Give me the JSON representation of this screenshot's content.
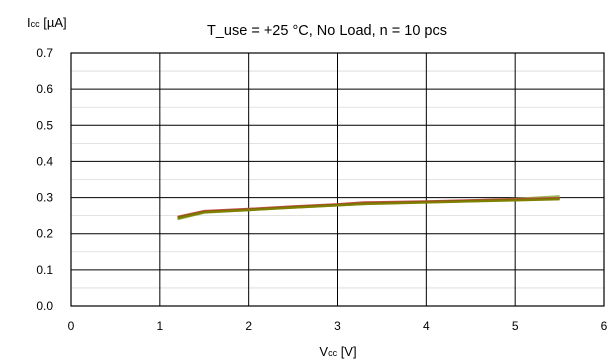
{
  "chart_data": {
    "type": "line",
    "title": "T_use = +25 °C, No Load, n = 10 pcs",
    "ylabel_main": "I",
    "ylabel_sub": "cc",
    "ylabel_unit": " [µA]",
    "xlabel_main": "V",
    "xlabel_sub": "cc",
    "xlabel_unit": " [V]",
    "xlim": [
      0,
      6
    ],
    "ylim": [
      0,
      0.7
    ],
    "x_ticks": [
      "0",
      "1",
      "2",
      "3",
      "4",
      "5",
      "6"
    ],
    "y_ticks": [
      "0.0",
      "0.1",
      "0.2",
      "0.3",
      "0.4",
      "0.5",
      "0.6",
      "0.7"
    ],
    "grid": true,
    "series": [
      {
        "color": "#9bbb59",
        "x": [
          1.2,
          1.5,
          2.0,
          2.5,
          3.0,
          3.3,
          4.0,
          4.5,
          5.0,
          5.5
        ],
        "y": [
          0.24,
          0.258,
          0.265,
          0.272,
          0.278,
          0.282,
          0.287,
          0.292,
          0.297,
          0.304
        ]
      },
      {
        "color": "#8064a2",
        "x": [
          1.2,
          1.5,
          2.0,
          2.5,
          3.0,
          3.3,
          4.0,
          4.5,
          5.0,
          5.5
        ],
        "y": [
          0.243,
          0.26,
          0.266,
          0.273,
          0.279,
          0.283,
          0.287,
          0.29,
          0.293,
          0.297
        ]
      },
      {
        "color": "#4bacc6",
        "x": [
          1.2,
          1.5,
          2.0,
          2.5,
          3.0,
          3.3,
          4.0,
          4.5,
          5.0,
          5.5
        ],
        "y": [
          0.244,
          0.26,
          0.266,
          0.273,
          0.279,
          0.283,
          0.287,
          0.29,
          0.293,
          0.296
        ]
      },
      {
        "color": "#f79646",
        "x": [
          1.2,
          1.5,
          2.0,
          2.5,
          3.0,
          3.3,
          4.0,
          4.5,
          5.0,
          5.5
        ],
        "y": [
          0.246,
          0.262,
          0.268,
          0.275,
          0.281,
          0.285,
          0.289,
          0.292,
          0.295,
          0.298
        ]
      },
      {
        "color": "#c0504d",
        "x": [
          1.2,
          1.5,
          2.0,
          2.5,
          3.0,
          3.3,
          4.0,
          4.5,
          5.0,
          5.5
        ],
        "y": [
          0.247,
          0.263,
          0.269,
          0.276,
          0.282,
          0.287,
          0.29,
          0.293,
          0.296,
          0.299
        ]
      },
      {
        "color": "#7f6000",
        "x": [
          1.2,
          1.5,
          2.0,
          2.5,
          3.0,
          3.3,
          4.0,
          4.5,
          5.0,
          5.5
        ],
        "y": [
          0.245,
          0.261,
          0.267,
          0.274,
          0.28,
          0.284,
          0.288,
          0.291,
          0.294,
          0.297
        ]
      },
      {
        "color": "#808000",
        "x": [
          1.2,
          1.5,
          2.0,
          2.5,
          3.0,
          3.3,
          4.0,
          4.5,
          5.0,
          5.5
        ],
        "y": [
          0.242,
          0.259,
          0.265,
          0.272,
          0.278,
          0.282,
          0.286,
          0.289,
          0.292,
          0.295
        ]
      }
    ]
  }
}
